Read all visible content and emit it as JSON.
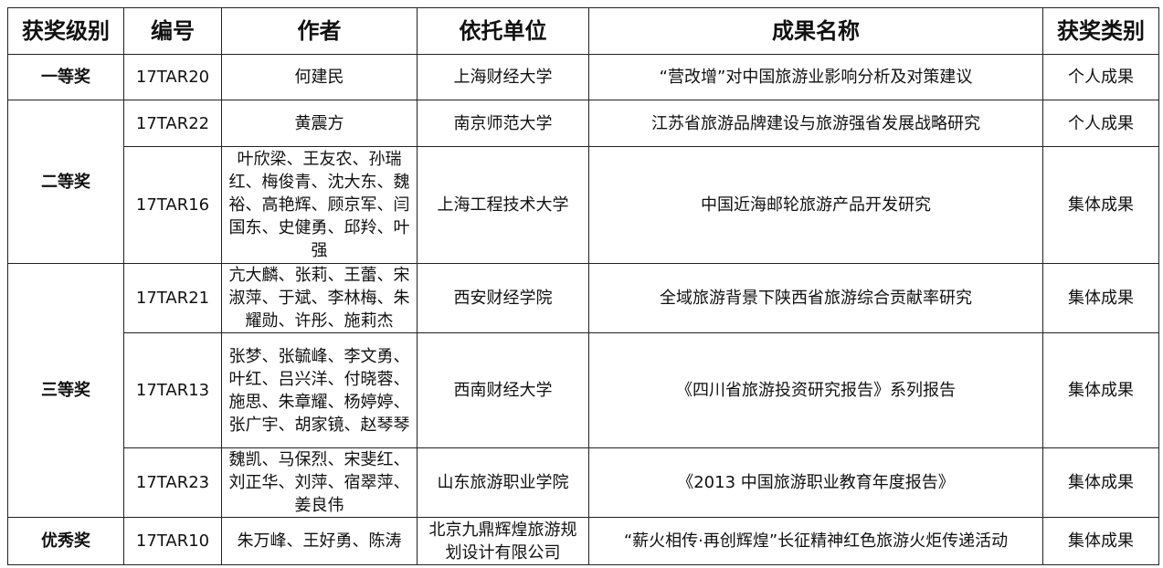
{
  "headers": [
    "获奖级别",
    "编号",
    "作者",
    "依托单位",
    "成果名称",
    "获奖类别"
  ],
  "levels": [
    "一等奖",
    "二等奖",
    "三等奖",
    "优秀奖"
  ],
  "rows": [
    {
      "id": "17TAR20",
      "authors": "何建民",
      "unit": "上海财经大学",
      "title": "“营改增”对中国旅游业影响分析及对策建议",
      "type": "个人成果"
    },
    {
      "id": "17TAR22",
      "authors": "黄震方",
      "unit": "南京师范大学",
      "title": "江苏省旅游品牌建设与旅游强省发展战略研究",
      "type": "个人成果"
    },
    {
      "id": "17TAR16",
      "authors": "叶欣梁、王友农、孙瑞红、梅俊青、沈大东、魏裕、高艳辉、顾京军、闫国东、史健勇、邱羚、叶强",
      "unit": "上海工程技术大学",
      "title": "中国近海邮轮旅游产品开发研究",
      "type": "集体成果"
    },
    {
      "id": "17TAR21",
      "authors": "亢大麟、张莉、王蕾、宋淑萍、于斌、李林梅、朱耀勋、许彤、施莉杰",
      "unit": "西安财经学院",
      "title": "全域旅游背景下陕西省旅游综合贡献率研究",
      "type": "集体成果"
    },
    {
      "id": "17TAR13",
      "authors": "张梦、张毓峰、李文勇、叶红、吕兴洋、付晓蓉、施思、朱章耀、杨婷婷、张广宇、胡家镜、赵琴琴",
      "unit": "西南财经大学",
      "title": "《四川省旅游投资研究报告》系列报告",
      "type": "集体成果"
    },
    {
      "id": "17TAR23",
      "authors": "魏凯、马保烈、宋斐红、刘正华、刘萍、宿翠萍、姜良伟",
      "unit": "山东旅游职业学院",
      "title": "《2013 中国旅游职业教育年度报告》",
      "type": "集体成果"
    },
    {
      "id": "17TAR10",
      "authors": "朱万峰、王好勇、陈涛",
      "unit": "北京九鼎辉煌旅游规划设计有限公司",
      "title": "“薪火相传·再创辉煌”长征精神红色旅游火炬传递活动",
      "type": "集体成果"
    }
  ]
}
